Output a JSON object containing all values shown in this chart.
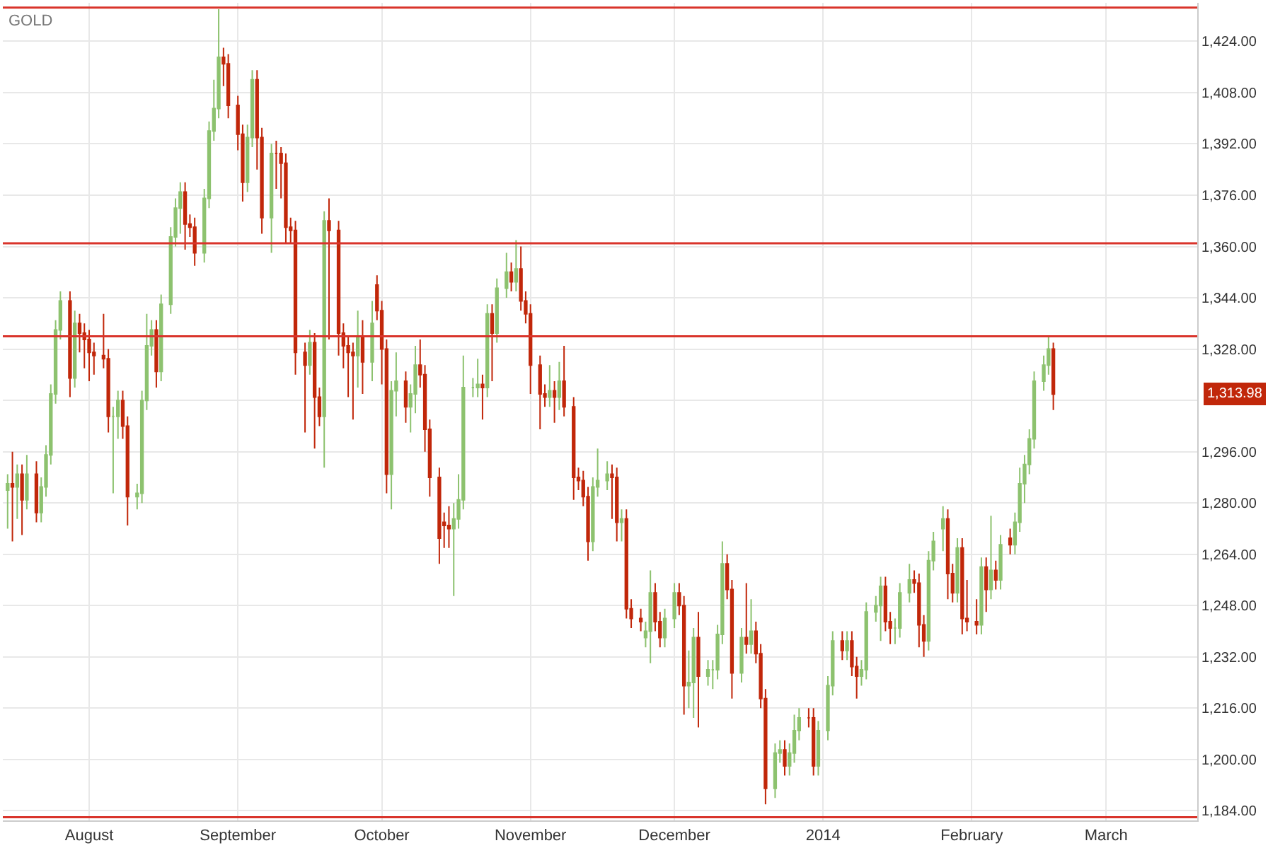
{
  "chart_data": {
    "type": "candlestick",
    "title": "GOLD",
    "x": [
      "2013-07-15",
      "2013-07-16",
      "2013-07-17",
      "2013-07-18",
      "2013-07-19",
      "2013-07-21",
      "2013-07-22",
      "2013-07-23",
      "2013-07-24",
      "2013-07-25",
      "2013-07-26",
      "2013-07-28",
      "2013-07-29",
      "2013-07-30",
      "2013-07-31",
      "2013-08-01",
      "2013-08-02",
      "2013-08-04",
      "2013-08-05",
      "2013-08-06",
      "2013-08-07",
      "2013-08-08",
      "2013-08-09",
      "2013-08-11",
      "2013-08-12",
      "2013-08-13",
      "2013-08-14",
      "2013-08-15",
      "2013-08-16",
      "2013-08-18",
      "2013-08-19",
      "2013-08-20",
      "2013-08-21",
      "2013-08-22",
      "2013-08-23",
      "2013-08-25",
      "2013-08-26",
      "2013-08-27",
      "2013-08-28",
      "2013-08-29",
      "2013-08-30",
      "2013-09-01",
      "2013-09-02",
      "2013-09-03",
      "2013-09-04",
      "2013-09-05",
      "2013-09-06",
      "2013-09-08",
      "2013-09-09",
      "2013-09-10",
      "2013-09-11",
      "2013-09-12",
      "2013-09-13",
      "2013-09-15",
      "2013-09-16",
      "2013-09-17",
      "2013-09-18",
      "2013-09-19",
      "2013-09-20",
      "2013-09-22",
      "2013-09-23",
      "2013-09-24",
      "2013-09-25",
      "2013-09-26",
      "2013-09-27",
      "2013-09-29",
      "2013-09-30",
      "2013-10-01",
      "2013-10-02",
      "2013-10-03",
      "2013-10-04",
      "2013-10-06",
      "2013-10-07",
      "2013-10-08",
      "2013-10-09",
      "2013-10-10",
      "2013-10-11",
      "2013-10-13",
      "2013-10-14",
      "2013-10-15",
      "2013-10-16",
      "2013-10-17",
      "2013-10-18",
      "2013-10-20",
      "2013-10-21",
      "2013-10-22",
      "2013-10-23",
      "2013-10-24",
      "2013-10-25",
      "2013-10-27",
      "2013-10-28",
      "2013-10-29",
      "2013-10-30",
      "2013-10-31",
      "2013-11-01",
      "2013-11-03",
      "2013-11-04",
      "2013-11-05",
      "2013-11-06",
      "2013-11-07",
      "2013-11-08",
      "2013-11-10",
      "2013-11-11",
      "2013-11-12",
      "2013-11-13",
      "2013-11-14",
      "2013-11-15",
      "2013-11-17",
      "2013-11-18",
      "2013-11-19",
      "2013-11-20",
      "2013-11-21",
      "2013-11-22",
      "2013-11-24",
      "2013-11-25",
      "2013-11-26",
      "2013-11-27",
      "2013-11-28",
      "2013-11-29",
      "2013-12-01",
      "2013-12-02",
      "2013-12-03",
      "2013-12-04",
      "2013-12-05",
      "2013-12-06",
      "2013-12-08",
      "2013-12-09",
      "2013-12-10",
      "2013-12-11",
      "2013-12-12",
      "2013-12-13",
      "2013-12-15",
      "2013-12-16",
      "2013-12-17",
      "2013-12-18",
      "2013-12-19",
      "2013-12-20",
      "2013-12-22",
      "2013-12-23",
      "2013-12-24",
      "2013-12-25",
      "2013-12-26",
      "2013-12-27",
      "2013-12-29",
      "2013-12-30",
      "2013-12-31",
      "2014-01-02",
      "2014-01-03",
      "2014-01-05",
      "2014-01-06",
      "2014-01-07",
      "2014-01-08",
      "2014-01-09",
      "2014-01-10",
      "2014-01-12",
      "2014-01-13",
      "2014-01-14",
      "2014-01-15",
      "2014-01-16",
      "2014-01-17",
      "2014-01-19",
      "2014-01-20",
      "2014-01-21",
      "2014-01-22",
      "2014-01-23",
      "2014-01-24",
      "2014-01-26",
      "2014-01-27",
      "2014-01-28",
      "2014-01-29",
      "2014-01-30",
      "2014-01-31",
      "2014-02-02",
      "2014-02-03",
      "2014-02-04",
      "2014-02-05",
      "2014-02-06",
      "2014-02-07",
      "2014-02-09",
      "2014-02-10",
      "2014-02-11",
      "2014-02-12",
      "2014-02-13",
      "2014-02-14",
      "2014-02-16",
      "2014-02-17",
      "2014-02-18"
    ],
    "ohlc": [
      [
        1284,
        1289,
        1272,
        1286
      ],
      [
        1286,
        1296,
        1268,
        1285
      ],
      [
        1285,
        1292,
        1275,
        1289
      ],
      [
        1289,
        1292,
        1270,
        1281
      ],
      [
        1281,
        1295,
        1278,
        1289
      ],
      [
        1289,
        1293,
        1274,
        1277
      ],
      [
        1277,
        1288,
        1274,
        1285
      ],
      [
        1285,
        1298,
        1282,
        1295
      ],
      [
        1295,
        1317,
        1292,
        1314
      ],
      [
        1314,
        1337,
        1311,
        1334
      ],
      [
        1334,
        1346,
        1331,
        1343
      ],
      [
        1343,
        1346,
        1313,
        1319
      ],
      [
        1319,
        1340,
        1316,
        1336
      ],
      [
        1336,
        1339,
        1327,
        1333
      ],
      [
        1333,
        1336,
        1322,
        1331
      ],
      [
        1331,
        1334,
        1318,
        1327
      ],
      [
        1327,
        1330,
        1320,
        1326
      ],
      [
        1326,
        1339,
        1322,
        1325
      ],
      [
        1325,
        1328,
        1302,
        1307
      ],
      [
        1307,
        1310,
        1283,
        1307
      ],
      [
        1307,
        1315,
        1300,
        1312
      ],
      [
        1312,
        1315,
        1300,
        1304
      ],
      [
        1304,
        1307,
        1273,
        1282
      ],
      [
        1282,
        1286,
        1278,
        1283
      ],
      [
        1283,
        1315,
        1280,
        1312
      ],
      [
        1312,
        1339,
        1309,
        1329
      ],
      [
        1329,
        1337,
        1326,
        1334
      ],
      [
        1334,
        1337,
        1316,
        1321
      ],
      [
        1321,
        1345,
        1318,
        1342
      ],
      [
        1342,
        1366,
        1339,
        1363
      ],
      [
        1363,
        1375,
        1360,
        1372
      ],
      [
        1372,
        1380,
        1364,
        1377
      ],
      [
        1377,
        1380,
        1359,
        1367
      ],
      [
        1367,
        1370,
        1363,
        1366
      ],
      [
        1366,
        1369,
        1354,
        1358
      ],
      [
        1358,
        1378,
        1355,
        1375
      ],
      [
        1375,
        1399,
        1372,
        1396
      ],
      [
        1396,
        1412,
        1393,
        1403
      ],
      [
        1403,
        1434,
        1400,
        1419
      ],
      [
        1419,
        1422,
        1410,
        1417
      ],
      [
        1417,
        1420,
        1400,
        1404
      ],
      [
        1404,
        1407,
        1390,
        1395
      ],
      [
        1395,
        1398,
        1374,
        1380
      ],
      [
        1380,
        1398,
        1377,
        1394
      ],
      [
        1394,
        1415,
        1391,
        1412
      ],
      [
        1412,
        1415,
        1384,
        1394
      ],
      [
        1394,
        1397,
        1364,
        1369
      ],
      [
        1369,
        1392,
        1358,
        1389
      ],
      [
        1389,
        1393,
        1378,
        1389
      ],
      [
        1389,
        1391,
        1375,
        1386
      ],
      [
        1386,
        1389,
        1361,
        1366
      ],
      [
        1366,
        1369,
        1361,
        1365
      ],
      [
        1365,
        1368,
        1320,
        1327
      ],
      [
        1327,
        1330,
        1302,
        1323
      ],
      [
        1323,
        1334,
        1320,
        1330
      ],
      [
        1330,
        1333,
        1297,
        1313
      ],
      [
        1313,
        1316,
        1304,
        1307
      ],
      [
        1307,
        1371,
        1291,
        1368
      ],
      [
        1368,
        1375,
        1331,
        1365
      ],
      [
        1365,
        1368,
        1326,
        1333
      ],
      [
        1333,
        1336,
        1322,
        1329
      ],
      [
        1329,
        1332,
        1313,
        1327
      ],
      [
        1327,
        1330,
        1306,
        1326
      ],
      [
        1326,
        1340,
        1316,
        1332
      ],
      [
        1332,
        1337,
        1314,
        1324
      ],
      [
        1324,
        1343,
        1318,
        1336
      ],
      [
        1348,
        1351,
        1337,
        1340
      ],
      [
        1340,
        1343,
        1317,
        1328
      ],
      [
        1328,
        1331,
        1283,
        1289
      ],
      [
        1289,
        1318,
        1278,
        1315
      ],
      [
        1315,
        1327,
        1307,
        1318
      ],
      [
        1318,
        1321,
        1305,
        1310
      ],
      [
        1310,
        1317,
        1302,
        1314
      ],
      [
        1314,
        1329,
        1308,
        1323
      ],
      [
        1323,
        1331,
        1316,
        1320
      ],
      [
        1320,
        1323,
        1296,
        1303
      ],
      [
        1303,
        1306,
        1282,
        1288
      ],
      [
        1288,
        1291,
        1261,
        1269
      ],
      [
        1274,
        1277,
        1266,
        1273
      ],
      [
        1273,
        1279,
        1266,
        1272
      ],
      [
        1272,
        1280,
        1251,
        1275
      ],
      [
        1275,
        1289,
        1272,
        1281
      ],
      [
        1281,
        1326,
        1278,
        1316
      ],
      [
        1316,
        1319,
        1313,
        1316
      ],
      [
        1316,
        1325,
        1313,
        1317
      ],
      [
        1317,
        1320,
        1306,
        1316
      ],
      [
        1316,
        1342,
        1313,
        1339
      ],
      [
        1339,
        1342,
        1318,
        1333
      ],
      [
        1333,
        1350,
        1330,
        1347
      ],
      [
        1347,
        1358,
        1344,
        1352
      ],
      [
        1352,
        1355,
        1346,
        1349
      ],
      [
        1349,
        1362,
        1346,
        1353
      ],
      [
        1353,
        1360,
        1340,
        1343
      ],
      [
        1343,
        1346,
        1336,
        1339
      ],
      [
        1339,
        1342,
        1314,
        1323
      ],
      [
        1323,
        1326,
        1303,
        1314
      ],
      [
        1314,
        1317,
        1310,
        1313
      ],
      [
        1313,
        1323,
        1310,
        1315
      ],
      [
        1315,
        1318,
        1305,
        1313
      ],
      [
        1313,
        1324,
        1309,
        1318
      ],
      [
        1318,
        1329,
        1307,
        1310
      ],
      [
        1310,
        1313,
        1281,
        1288
      ],
      [
        1288,
        1291,
        1284,
        1287
      ],
      [
        1287,
        1290,
        1279,
        1282
      ],
      [
        1282,
        1285,
        1262,
        1268
      ],
      [
        1268,
        1288,
        1265,
        1285
      ],
      [
        1285,
        1297,
        1282,
        1287
      ],
      [
        1287,
        1293,
        1284,
        1289
      ],
      [
        1289,
        1292,
        1275,
        1288
      ],
      [
        1288,
        1291,
        1268,
        1274
      ],
      [
        1274,
        1278,
        1268,
        1275
      ],
      [
        1275,
        1278,
        1244,
        1247
      ],
      [
        1247,
        1250,
        1241,
        1244
      ],
      [
        1244,
        1247,
        1240,
        1243
      ],
      [
        1238,
        1243,
        1235,
        1240
      ],
      [
        1240,
        1259,
        1230,
        1252
      ],
      [
        1252,
        1255,
        1240,
        1243
      ],
      [
        1243,
        1246,
        1235,
        1238
      ],
      [
        1238,
        1247,
        1235,
        1244
      ],
      [
        1244,
        1255,
        1241,
        1252
      ],
      [
        1252,
        1255,
        1245,
        1248
      ],
      [
        1248,
        1251,
        1214,
        1223
      ],
      [
        1223,
        1234,
        1216,
        1224
      ],
      [
        1224,
        1241,
        1213,
        1238
      ],
      [
        1238,
        1246,
        1210,
        1226
      ],
      [
        1226,
        1231,
        1223,
        1228
      ],
      [
        1228,
        1231,
        1222,
        1228
      ],
      [
        1228,
        1242,
        1225,
        1239
      ],
      [
        1239,
        1268,
        1236,
        1261
      ],
      [
        1261,
        1264,
        1250,
        1253
      ],
      [
        1253,
        1256,
        1219,
        1227
      ],
      [
        1227,
        1241,
        1224,
        1238
      ],
      [
        1238,
        1255,
        1233,
        1236
      ],
      [
        1236,
        1250,
        1233,
        1240
      ],
      [
        1240,
        1243,
        1230,
        1233
      ],
      [
        1233,
        1236,
        1216,
        1219
      ],
      [
        1219,
        1222,
        1186,
        1191
      ],
      [
        1191,
        1205,
        1188,
        1202
      ],
      [
        1202,
        1206,
        1199,
        1203
      ],
      [
        1203,
        1206,
        1195,
        1198
      ],
      [
        1198,
        1205,
        1195,
        1202
      ],
      [
        1202,
        1214,
        1199,
        1209
      ],
      [
        1209,
        1216,
        1206,
        1213
      ],
      [
        1213,
        1216,
        1210,
        1213
      ],
      [
        1213,
        1216,
        1195,
        1198
      ],
      [
        1198,
        1212,
        1195,
        1209
      ],
      [
        1209,
        1226,
        1206,
        1223
      ],
      [
        1223,
        1240,
        1220,
        1237
      ],
      [
        1237,
        1240,
        1231,
        1234
      ],
      [
        1234,
        1240,
        1231,
        1237
      ],
      [
        1237,
        1240,
        1226,
        1229
      ],
      [
        1229,
        1232,
        1219,
        1226
      ],
      [
        1226,
        1231,
        1223,
        1228
      ],
      [
        1228,
        1249,
        1225,
        1246
      ],
      [
        1246,
        1251,
        1243,
        1248
      ],
      [
        1248,
        1257,
        1237,
        1254
      ],
      [
        1254,
        1257,
        1240,
        1243
      ],
      [
        1243,
        1246,
        1236,
        1241
      ],
      [
        1241,
        1244,
        1236,
        1241
      ],
      [
        1241,
        1255,
        1238,
        1252
      ],
      [
        1252,
        1261,
        1249,
        1256
      ],
      [
        1256,
        1259,
        1252,
        1255
      ],
      [
        1255,
        1258,
        1235,
        1242
      ],
      [
        1242,
        1245,
        1232,
        1237
      ],
      [
        1237,
        1265,
        1234,
        1262
      ],
      [
        1262,
        1271,
        1259,
        1268
      ],
      [
        1272,
        1279,
        1265,
        1275
      ],
      [
        1275,
        1278,
        1250,
        1258
      ],
      [
        1258,
        1261,
        1249,
        1252
      ],
      [
        1252,
        1269,
        1249,
        1266
      ],
      [
        1266,
        1269,
        1239,
        1244
      ],
      [
        1244,
        1256,
        1240,
        1243
      ],
      [
        1243,
        1250,
        1239,
        1242
      ],
      [
        1242,
        1263,
        1239,
        1260
      ],
      [
        1260,
        1263,
        1246,
        1253
      ],
      [
        1253,
        1276,
        1250,
        1259
      ],
      [
        1259,
        1262,
        1253,
        1256
      ],
      [
        1256,
        1270,
        1253,
        1267
      ],
      [
        1269,
        1272,
        1264,
        1267
      ],
      [
        1267,
        1277,
        1264,
        1274
      ],
      [
        1274,
        1291,
        1271,
        1286
      ],
      [
        1286,
        1295,
        1280,
        1292
      ],
      [
        1292,
        1303,
        1289,
        1300
      ],
      [
        1300,
        1321,
        1297,
        1318
      ],
      [
        1318,
        1326,
        1315,
        1323
      ],
      [
        1323,
        1332,
        1320,
        1328
      ],
      [
        1328,
        1330,
        1309,
        1313.98
      ]
    ],
    "colors": [
      "#8dc26f",
      "#c1270a",
      "#8dc26f",
      "#c1270a",
      "#8dc26f",
      "#c1270a",
      "#8dc26f",
      "#8dc26f",
      "#8dc26f",
      "#8dc26f",
      "#8dc26f",
      "#c1270a",
      "#8dc26f",
      "#c1270a",
      "#c1270a",
      "#c1270a",
      "#c1270a",
      "#c1270a",
      "#c1270a",
      "#8dc26f",
      "#8dc26f",
      "#c1270a",
      "#c1270a",
      "#8dc26f",
      "#8dc26f",
      "#8dc26f",
      "#8dc26f",
      "#c1270a",
      "#8dc26f",
      "#8dc26f",
      "#8dc26f",
      "#8dc26f",
      "#c1270a",
      "#c1270a",
      "#c1270a",
      "#8dc26f",
      "#8dc26f",
      "#8dc26f",
      "#8dc26f",
      "#c1270a",
      "#c1270a",
      "#c1270a",
      "#c1270a",
      "#8dc26f",
      "#8dc26f",
      "#c1270a",
      "#c1270a",
      "#8dc26f",
      "#c1270a",
      "#c1270a",
      "#c1270a",
      "#c1270a",
      "#c1270a",
      "#c1270a",
      "#8dc26f",
      "#c1270a",
      "#c1270a",
      "#8dc26f",
      "#c1270a",
      "#c1270a",
      "#c1270a",
      "#c1270a",
      "#c1270a",
      "#8dc26f",
      "#c1270a",
      "#8dc26f",
      "#c1270a",
      "#c1270a",
      "#c1270a",
      "#8dc26f",
      "#8dc26f",
      "#c1270a",
      "#8dc26f",
      "#8dc26f",
      "#c1270a",
      "#c1270a",
      "#c1270a",
      "#c1270a",
      "#c1270a",
      "#c1270a",
      "#8dc26f",
      "#8dc26f",
      "#8dc26f",
      "#8dc26f",
      "#8dc26f",
      "#c1270a",
      "#8dc26f",
      "#c1270a",
      "#8dc26f",
      "#8dc26f",
      "#c1270a",
      "#8dc26f",
      "#c1270a",
      "#c1270a",
      "#c1270a",
      "#c1270a",
      "#c1270a",
      "#8dc26f",
      "#c1270a",
      "#8dc26f",
      "#c1270a",
      "#c1270a",
      "#c1270a",
      "#c1270a",
      "#c1270a",
      "#8dc26f",
      "#8dc26f",
      "#8dc26f",
      "#c1270a",
      "#c1270a",
      "#8dc26f",
      "#c1270a",
      "#c1270a",
      "#c1270a",
      "#8dc26f",
      "#8dc26f",
      "#c1270a",
      "#c1270a",
      "#8dc26f",
      "#8dc26f",
      "#c1270a",
      "#c1270a",
      "#8dc26f",
      "#8dc26f",
      "#c1270a",
      "#8dc26f",
      "#8dc26f",
      "#8dc26f",
      "#8dc26f",
      "#c1270a",
      "#c1270a",
      "#8dc26f",
      "#c1270a",
      "#8dc26f",
      "#c1270a",
      "#c1270a",
      "#c1270a",
      "#8dc26f",
      "#8dc26f",
      "#c1270a",
      "#8dc26f",
      "#8dc26f",
      "#8dc26f",
      "#c1270a",
      "#c1270a",
      "#8dc26f",
      "#8dc26f",
      "#8dc26f",
      "#c1270a",
      "#8dc26f",
      "#c1270a",
      "#c1270a",
      "#8dc26f",
      "#8dc26f",
      "#8dc26f",
      "#8dc26f",
      "#c1270a",
      "#c1270a",
      "#8dc26f",
      "#8dc26f",
      "#8dc26f",
      "#c1270a",
      "#c1270a",
      "#c1270a",
      "#8dc26f",
      "#8dc26f",
      "#8dc26f",
      "#c1270a",
      "#c1270a",
      "#8dc26f",
      "#c1270a",
      "#c1270a",
      "#c1270a",
      "#8dc26f",
      "#c1270a",
      "#8dc26f",
      "#c1270a",
      "#8dc26f",
      "#c1270a",
      "#8dc26f",
      "#8dc26f",
      "#8dc26f",
      "#8dc26f",
      "#8dc26f",
      "#8dc26f",
      "#8dc26f",
      "#c1270a"
    ],
    "xlim": [
      "2013-07-14",
      "2014-03-20"
    ],
    "xticks": [
      {
        "value": "2013-08-01",
        "label": "August"
      },
      {
        "value": "2013-09-01",
        "label": "September"
      },
      {
        "value": "2013-10-01",
        "label": "October"
      },
      {
        "value": "2013-11-01",
        "label": "November"
      },
      {
        "value": "2013-12-01",
        "label": "December"
      },
      {
        "value": "2014-01-01",
        "label": "2014"
      },
      {
        "value": "2014-02-01",
        "label": "February"
      },
      {
        "value": "2014-03-01",
        "label": "March"
      }
    ],
    "ylim": [
      1181,
      1436
    ],
    "yticks": [
      {
        "value": 1184,
        "label": "1,184.00"
      },
      {
        "value": 1200,
        "label": "1,200.00"
      },
      {
        "value": 1216,
        "label": "1,216.00"
      },
      {
        "value": 1232,
        "label": "1,232.00"
      },
      {
        "value": 1248,
        "label": "1,248.00"
      },
      {
        "value": 1264,
        "label": "1,264.00"
      },
      {
        "value": 1280,
        "label": "1,280.00"
      },
      {
        "value": 1296,
        "label": "1,296.00"
      },
      {
        "value": 1312,
        "label": null
      },
      {
        "value": 1328,
        "label": "1,328.00"
      },
      {
        "value": 1344,
        "label": "1,344.00"
      },
      {
        "value": 1360,
        "label": "1,360.00"
      },
      {
        "value": 1376,
        "label": "1,376.00"
      },
      {
        "value": 1392,
        "label": "1,392.00"
      },
      {
        "value": 1408,
        "label": "1,408.00"
      },
      {
        "value": 1424,
        "label": "1,424.00"
      }
    ],
    "ref_lines": [
      {
        "axis": "y",
        "value": 1434.5,
        "color": "#d9342b"
      },
      {
        "axis": "y",
        "value": 1361,
        "color": "#d9342b"
      },
      {
        "axis": "y",
        "value": 1332,
        "color": "#d9342b"
      },
      {
        "axis": "y",
        "value": 1182,
        "color": "#d9342b"
      }
    ],
    "annotations": [
      "1,313.98"
    ],
    "grid": true,
    "legend": false
  }
}
